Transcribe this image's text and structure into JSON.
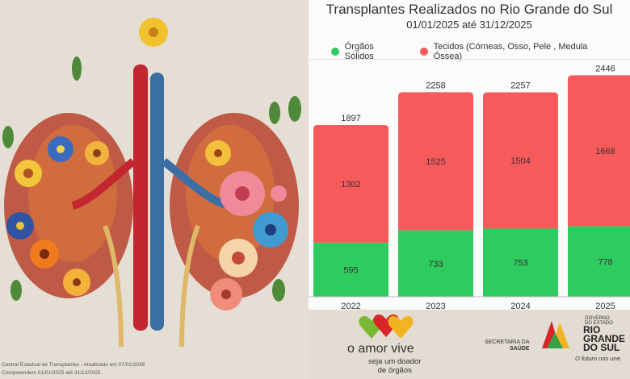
{
  "chart_data": {
    "type": "bar",
    "stacked": true,
    "title": "Transplantes Realizados no Rio Grande do Sul",
    "subtitle": "01/01/2025 até 31/12/2025",
    "categories": [
      "2022",
      "2023",
      "2024",
      "2025"
    ],
    "totals": [
      1897,
      2258,
      2257,
      2446
    ],
    "series": [
      {
        "name": "Órgãos Sólidos",
        "color": "#2ecc5f",
        "values": [
          595,
          733,
          753,
          778
        ]
      },
      {
        "name": "Tecidos (Córneas, Osso, Pele , Medula Óssea)",
        "color": "#f65a5b",
        "values": [
          1302,
          1525,
          1504,
          1668
        ]
      }
    ],
    "legend_position": "top-left",
    "grid": false
  },
  "left_panel": {
    "footer_line1": "Central Estadual de Transplantes - Atualizado em 07/01/2026",
    "footer_line2": "Compreendem 01/01/2025 até 31/12/2025."
  },
  "branding": {
    "slogan": "o amor vive",
    "slogan_sub1": "seja um doador",
    "slogan_sub2": "de órgãos",
    "secretaria1": "SECRETARIA DA",
    "secretaria2": "SAÚDE",
    "gov_small1": "GOVERNO",
    "gov_small2": "DO ESTADO",
    "gov_big1": "RIO",
    "gov_big2": "GRANDE",
    "gov_big3": "DO SUL",
    "futuro": "O futuro nos une."
  }
}
